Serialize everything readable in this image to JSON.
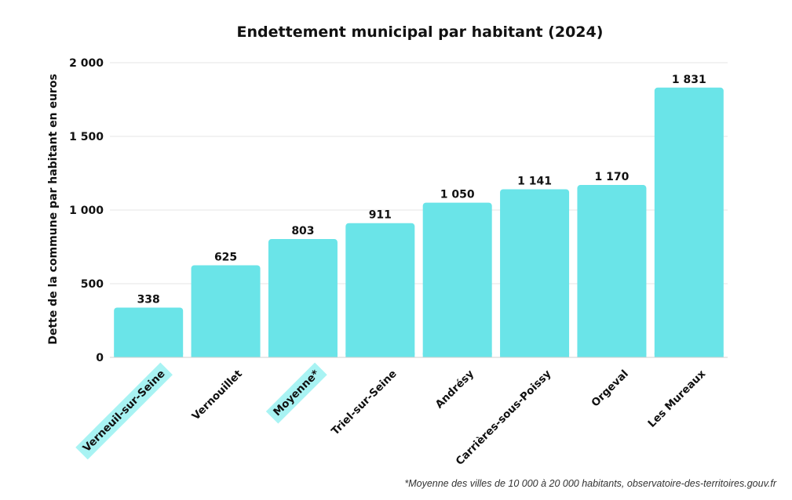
{
  "chart_data": {
    "type": "bar",
    "title": "Endettement municipal par habitant (2024)",
    "ylabel": "Dette de la commune par habitant en euros",
    "xlabel": "",
    "ylim": [
      0,
      2000
    ],
    "yticks": [
      0,
      500,
      1000,
      1500,
      2000
    ],
    "ytick_labels": [
      "0",
      "500",
      "1 000",
      "1 500",
      "2 000"
    ],
    "grid": true,
    "categories": [
      "Verneuil-sur-Seine",
      "Vernouillet",
      "Moyenne*",
      "Triel-sur-Seine",
      "Andrésy",
      "Carrières-sous-Poissy",
      "Orgeval",
      "Les Mureaux"
    ],
    "values": [
      338,
      625,
      803,
      911,
      1050,
      1141,
      1170,
      1831
    ],
    "value_labels": [
      "338",
      "625",
      "803",
      "911",
      "1 050",
      "1 141",
      "1 170",
      "1 831"
    ],
    "highlighted_categories": [
      "Verneuil-sur-Seine",
      "Moyenne*"
    ],
    "colors": {
      "bar": "#6ae4e8",
      "highlight": "#a8f3f3",
      "grid": "#e6e6e6",
      "text": "#111111"
    }
  },
  "footnote": "*Moyenne des villes de 10 000 à 20 000 habitants, observatoire-des-territoires.gouv.fr"
}
